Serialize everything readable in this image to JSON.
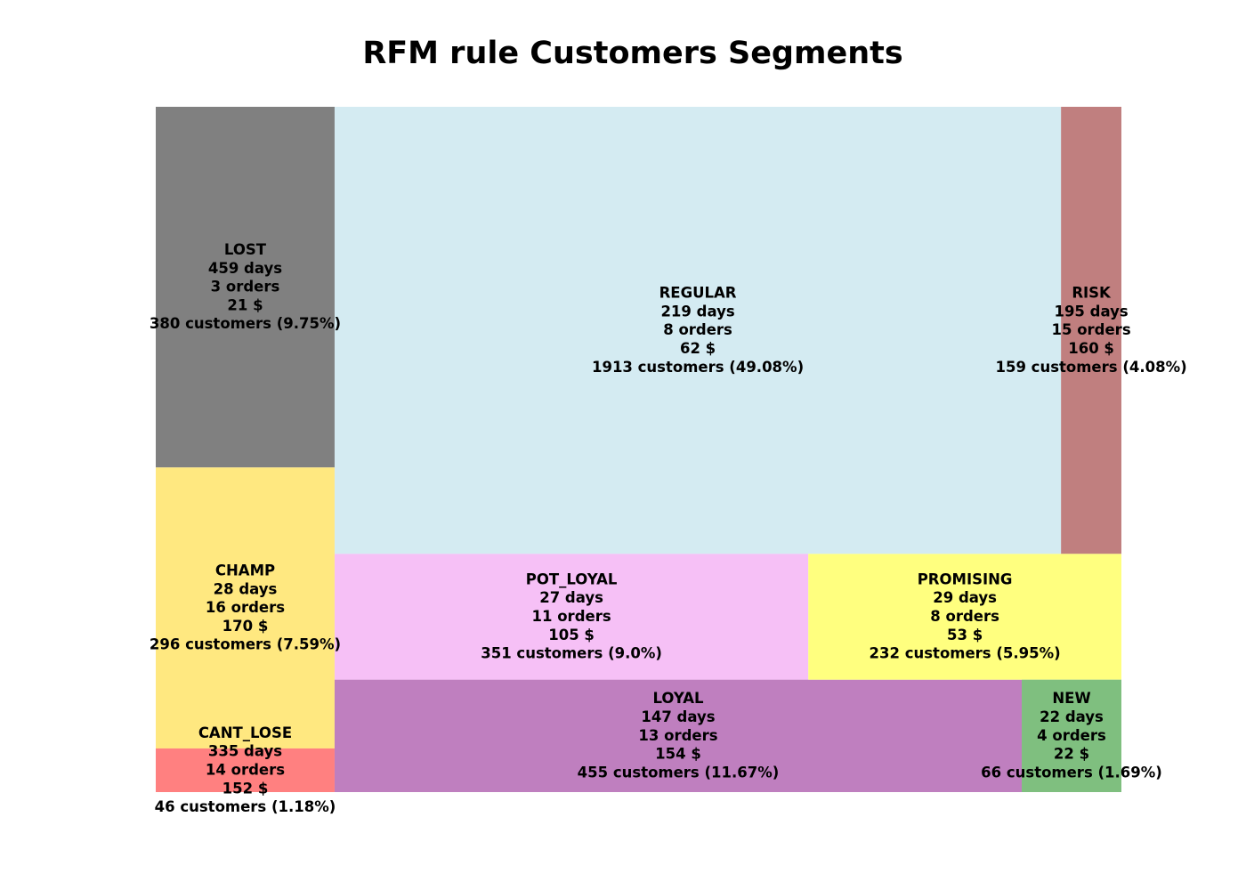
{
  "chart_data": {
    "type": "treemap",
    "title": "RFM rule Customers Segments",
    "value_field": "customers",
    "segments": [
      {
        "name": "LOST",
        "days": "459 days",
        "orders": "3 orders",
        "monetary": "21 $",
        "customers_label": "380 customers (9.75%)",
        "customers": 380,
        "share": 9.75,
        "color": "#808080"
      },
      {
        "name": "CHAMP",
        "days": "28 days",
        "orders": "16 orders",
        "monetary": "170 $",
        "customers_label": "296 customers (7.59%)",
        "customers": 296,
        "share": 7.59,
        "color": "#FFE880"
      },
      {
        "name": "CANT_LOSE",
        "days": "335 days",
        "orders": "14 orders",
        "monetary": "152 $",
        "customers_label": "46 customers (1.18%)",
        "customers": 46,
        "share": 1.18,
        "color": "#FF8080"
      },
      {
        "name": "REGULAR",
        "days": "219 days",
        "orders": "8 orders",
        "monetary": "62 $",
        "customers_label": "1913 customers (49.08%)",
        "customers": 1913,
        "share": 49.08,
        "color": "#D4EBF2"
      },
      {
        "name": "POT_LOYAL",
        "days": "27 days",
        "orders": "11 orders",
        "monetary": "105 $",
        "customers_label": "351 customers (9.0%)",
        "customers": 351,
        "share": 9.0,
        "color": "#F6C0F6"
      },
      {
        "name": "LOYAL",
        "days": "147 days",
        "orders": "13 orders",
        "monetary": "154 $",
        "customers_label": "455 customers (11.67%)",
        "customers": 455,
        "share": 11.67,
        "color": "#BF7FBF"
      },
      {
        "name": "RISK",
        "days": "195 days",
        "orders": "15 orders",
        "monetary": "160 $",
        "customers_label": "159 customers (4.08%)",
        "customers": 159,
        "share": 4.08,
        "color": "#C07F7F"
      },
      {
        "name": "PROMISING",
        "days": "29 days",
        "orders": "8 orders",
        "monetary": "53 $",
        "customers_label": "232 customers (5.95%)",
        "customers": 232,
        "share": 5.95,
        "color": "#FFFF7F"
      },
      {
        "name": "NEW",
        "days": "22 days",
        "orders": "4 orders",
        "monetary": "22 $",
        "customers_label": "66 customers (1.69%)",
        "customers": 66,
        "share": 1.69,
        "color": "#7FBF7F"
      }
    ]
  }
}
